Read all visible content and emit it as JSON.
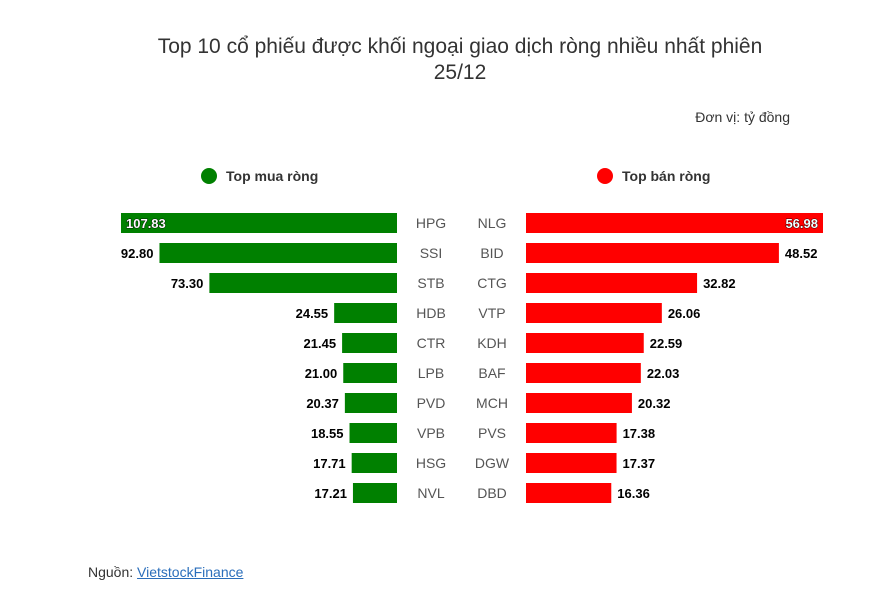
{
  "title_line1": "Top 10 cổ phiếu được khối ngoại giao dịch ròng nhiều nhất phiên",
  "title_line2": "25/12",
  "unit": "Đơn vị: tỷ đồng",
  "legend": {
    "buy": "Top mua ròng",
    "sell": "Top bán ròng"
  },
  "colors": {
    "buy": "#008000",
    "sell": "#ff0000"
  },
  "source_label": "Nguồn:",
  "source_link": "VietstockFinance",
  "chart_data": [
    {
      "type": "bar",
      "orientation": "horizontal",
      "name": "Top mua ròng",
      "categories": [
        "HPG",
        "SSI",
        "STB",
        "HDB",
        "CTR",
        "LPB",
        "PVD",
        "VPB",
        "HSG",
        "NVL"
      ],
      "values": [
        107.83,
        92.8,
        73.3,
        24.55,
        21.45,
        21.0,
        20.37,
        18.55,
        17.71,
        17.21
      ],
      "labels": [
        "107.83",
        "92.80",
        "73.30",
        "24.55",
        "21.45",
        "21.00",
        "20.37",
        "18.55",
        "17.71",
        "17.21"
      ],
      "color": "#008000"
    },
    {
      "type": "bar",
      "orientation": "horizontal",
      "name": "Top bán ròng",
      "categories": [
        "NLG",
        "BID",
        "CTG",
        "VTP",
        "KDH",
        "BAF",
        "MCH",
        "PVS",
        "DGW",
        "DBD"
      ],
      "values": [
        56.98,
        48.52,
        32.82,
        26.06,
        22.59,
        22.03,
        20.32,
        17.38,
        17.37,
        16.36
      ],
      "labels": [
        "56.98",
        "48.52",
        "32.82",
        "26.06",
        "22.59",
        "22.03",
        "20.32",
        "17.38",
        "17.37",
        "16.36"
      ],
      "color": "#ff0000"
    }
  ]
}
